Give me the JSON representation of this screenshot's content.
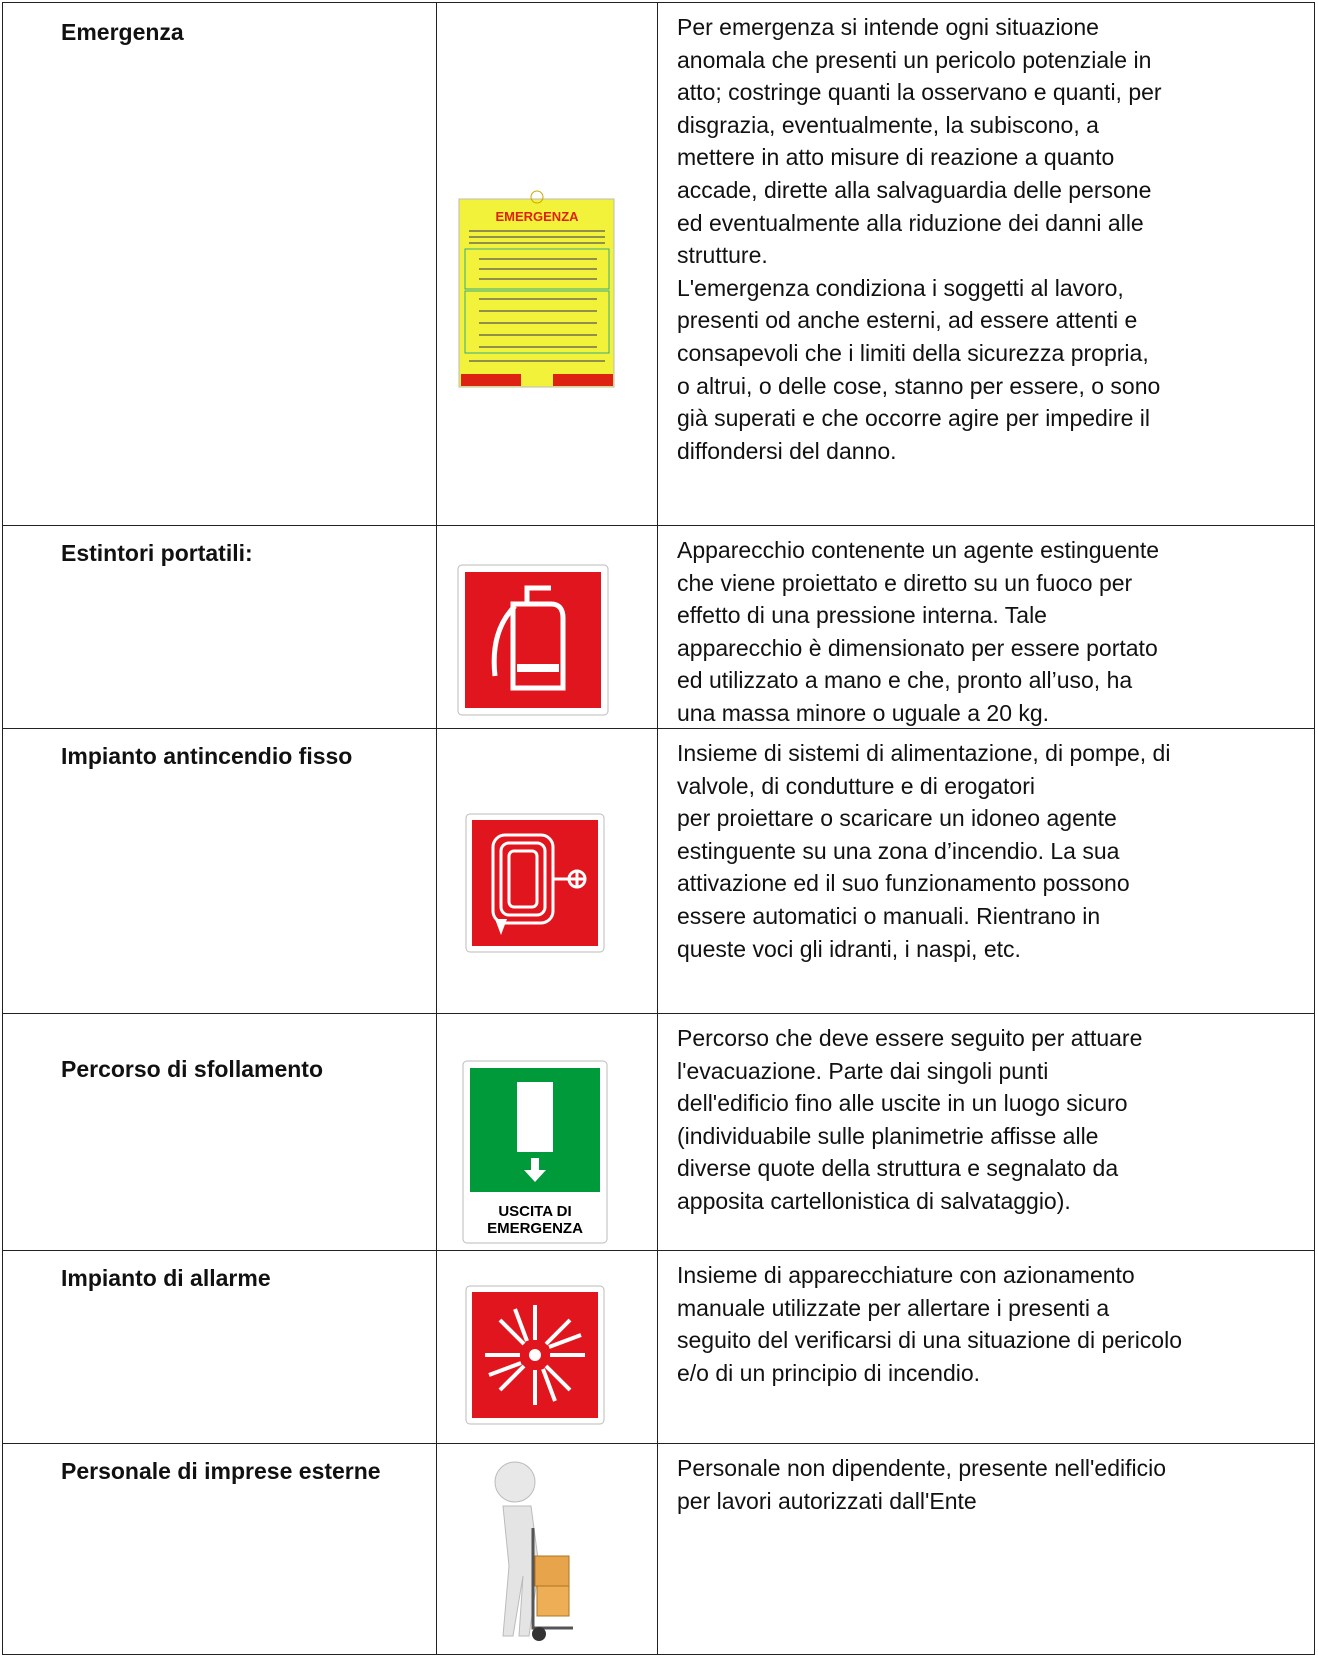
{
  "table": {
    "rows": [
      {
        "term": "Emergenza",
        "sign_text": "EMERGENZA",
        "description": [
          "Per emergenza si intende ogni situazione",
          "anomala che presenti un pericolo potenziale in",
          "atto; costringe quanti la osservano e quanti, per",
          "disgrazia, eventualmente, la subiscono, a",
          "mettere in atto misure di reazione a quanto",
          "accade, dirette alla salvaguardia delle persone",
          "ed eventualmente alla riduzione dei danni alle",
          "strutture.",
          "L'emergenza condiziona i soggetti al lavoro,",
          "presenti od anche esterni, ad essere attenti e",
          "consapevoli che i limiti della sicurezza propria,",
          "o altrui, o delle cose, stanno per essere, o sono",
          "già superati e che occorre agire per impedire il",
          "diffondersi del danno."
        ]
      },
      {
        "term": "Estintori portatili:",
        "description": [
          "Apparecchio contenente un agente estinguente",
          "che viene proiettato e diretto su un fuoco per",
          "effetto di una pressione interna. Tale",
          "apparecchio è dimensionato per essere portato",
          "ed utilizzato a mano e che, pronto all’uso, ha",
          "una massa minore o uguale a 20 kg."
        ]
      },
      {
        "term": "Impianto antincendio fisso",
        "description": [
          "Insieme di sistemi di alimentazione, di pompe, di",
          "valvole, di condutture e di erogatori",
          "per proiettare o scaricare un idoneo agente",
          "estinguente su una zona d’incendio. La sua",
          "attivazione ed il suo funzionamento possono",
          "essere automatici o manuali. Rientrano in",
          "queste voci gli idranti, i naspi, etc."
        ]
      },
      {
        "term": "Percorso di sfollamento",
        "sign_text": [
          "USCITA DI",
          "EMERGENZA"
        ],
        "description": [
          "Percorso che deve essere seguito per attuare",
          "l'evacuazione. Parte dai singoli punti",
          "dell'edificio fino alle uscite in un luogo sicuro",
          "(individuabile sulle planimetrie affisse alle",
          "diverse quote della struttura e segnalato da",
          "apposita cartellonistica di salvataggio)."
        ]
      },
      {
        "term": "Impianto di allarme",
        "description": [
          "Insieme di apparecchiature con azionamento",
          "manuale utilizzate per allertare i presenti a",
          "seguito del verificarsi di una situazione di pericolo",
          "e/o di un principio di incendio."
        ]
      },
      {
        "term": "Personale di imprese esterne",
        "description": [
          "Personale non dipendente, presente nell'edificio",
          "per lavori autorizzati dall'Ente"
        ]
      }
    ]
  }
}
